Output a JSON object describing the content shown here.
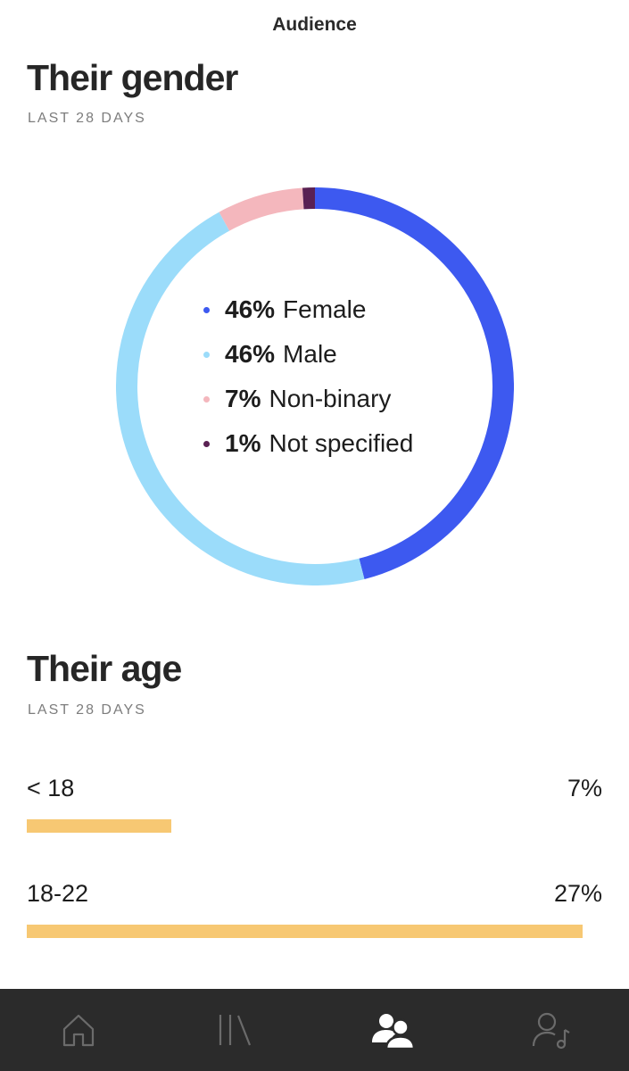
{
  "header": {
    "title": "Audience"
  },
  "gender": {
    "title": "Their gender",
    "period": "LAST 28 DAYS",
    "segments": [
      {
        "pct": "46%",
        "label": "Female",
        "value": 46,
        "color": "#3d59f0"
      },
      {
        "pct": "46%",
        "label": "Male",
        "value": 46,
        "color": "#9bdcfa"
      },
      {
        "pct": "7%",
        "label": "Non-binary",
        "value": 7,
        "color": "#f4b7bd"
      },
      {
        "pct": "1%",
        "label": "Not specified",
        "value": 1,
        "color": "#5a2153"
      }
    ]
  },
  "age": {
    "title": "Their age",
    "period": "LAST 28 DAYS",
    "bar_color": "#f7c873",
    "rows": [
      {
        "label": "< 18",
        "value": "7%",
        "fraction": 0.26
      },
      {
        "label": "18-22",
        "value": "27%",
        "fraction": 1.0
      }
    ]
  },
  "tabbar": {
    "items": [
      {
        "icon": "home-icon",
        "active": false
      },
      {
        "icon": "library-icon",
        "active": false
      },
      {
        "icon": "audience-icon",
        "active": true
      },
      {
        "icon": "profile-music-icon",
        "active": false
      }
    ]
  }
}
